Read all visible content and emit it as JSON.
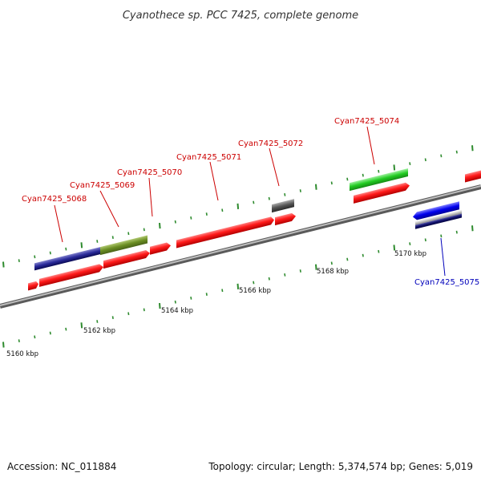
{
  "header": {
    "title": "Cyanothece sp. PCC 7425, complete genome"
  },
  "footer": {
    "accession": "Accession: NC_011884",
    "summary": "Topology: circular; Length: 5,374,574 bp; Genes: 5,019"
  },
  "scale_labels": [
    "5160 kbp",
    "5162 kbp",
    "5164 kbp",
    "5166 kbp",
    "5168 kbp",
    "5170 kbp"
  ],
  "gene_labels": [
    {
      "text": "Cyan7425_5068",
      "color": "#cc0000"
    },
    {
      "text": "Cyan7425_5069",
      "color": "#cc0000"
    },
    {
      "text": "Cyan7425_5070",
      "color": "#cc0000"
    },
    {
      "text": "Cyan7425_5071",
      "color": "#cc0000"
    },
    {
      "text": "Cyan7425_5072",
      "color": "#cc0000"
    },
    {
      "text": "Cyan7425_5074",
      "color": "#cc0000"
    },
    {
      "text": "Cyan7425_5075",
      "color": "#0000bb"
    }
  ],
  "colors": {
    "cds": "#ff0000",
    "backbone": "#888888",
    "tick": "#2e8b2e",
    "navy_feature": "#1a1a8c",
    "olive_feature": "#6b8e23",
    "green_feature": "#22cc22",
    "gray_feature": "#555555",
    "blue_feature": "#0000ee"
  }
}
